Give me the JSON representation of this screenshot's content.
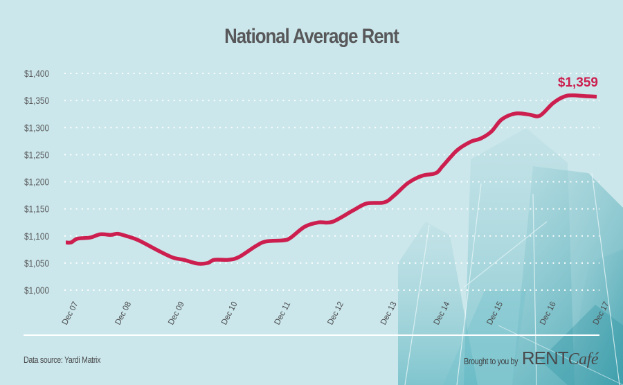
{
  "title": "National Average Rent",
  "footer": {
    "source": "Data source: Yardi Matrix",
    "brought_by": "Brought to you by",
    "brand_main": "RENT",
    "brand_script": "Café"
  },
  "colors": {
    "background": "#cbe7eb",
    "line": "#cc1f4f",
    "grid": "#ffffff",
    "text": "#58585a"
  },
  "chart_data": {
    "type": "line",
    "title": "National Average Rent",
    "xlabel": "",
    "ylabel": "",
    "ylim": [
      1000,
      1400
    ],
    "xlim": [
      0,
      10
    ],
    "yticks": [
      1000,
      1050,
      1100,
      1150,
      1200,
      1250,
      1300,
      1350,
      1400
    ],
    "ytick_labels": [
      "$1,000",
      "$1,050",
      "$1,100",
      "$1,150",
      "$1,200",
      "$1,250",
      "$1,300",
      "$1,350",
      "$1,400"
    ],
    "xticks": [
      0,
      1,
      2,
      3,
      4,
      5,
      6,
      7,
      8,
      9,
      10
    ],
    "xtick_labels": [
      "Dec 07",
      "Dec 08",
      "Dec 09",
      "Dec 10",
      "Dec 11",
      "Dec 12",
      "Dec 13",
      "Dec 14",
      "Dec 15",
      "Dec 16",
      "Dec 17"
    ],
    "grid": true,
    "legend": "none",
    "annotation": {
      "label": "$1,359",
      "x": 9.75,
      "value": 1359
    },
    "series": [
      {
        "name": "National Average Rent",
        "x": [
          0,
          0.1,
          0.22,
          0.46,
          0.65,
          0.85,
          0.98,
          1.17,
          1.37,
          1.76,
          2.02,
          2.22,
          2.48,
          2.67,
          2.8,
          3.06,
          3.26,
          3.59,
          3.78,
          4.11,
          4.24,
          4.5,
          4.76,
          5.02,
          5.41,
          5.67,
          6.0,
          6.19,
          6.45,
          6.71,
          6.97,
          7.1,
          7.37,
          7.63,
          7.82,
          8.02,
          8.21,
          8.47,
          8.73,
          8.93,
          9.19,
          9.45,
          9.78,
          10.0
        ],
        "values": [
          1088,
          1088,
          1095,
          1097,
          1103,
          1102,
          1104,
          1099,
          1092,
          1072,
          1060,
          1056,
          1049,
          1050,
          1056,
          1056,
          1061,
          1082,
          1090,
          1092,
          1097,
          1117,
          1125,
          1126,
          1147,
          1160,
          1162,
          1175,
          1198,
          1211,
          1216,
          1229,
          1258,
          1274,
          1280,
          1293,
          1315,
          1326,
          1324,
          1322,
          1346,
          1359,
          1358,
          1357
        ]
      }
    ]
  }
}
